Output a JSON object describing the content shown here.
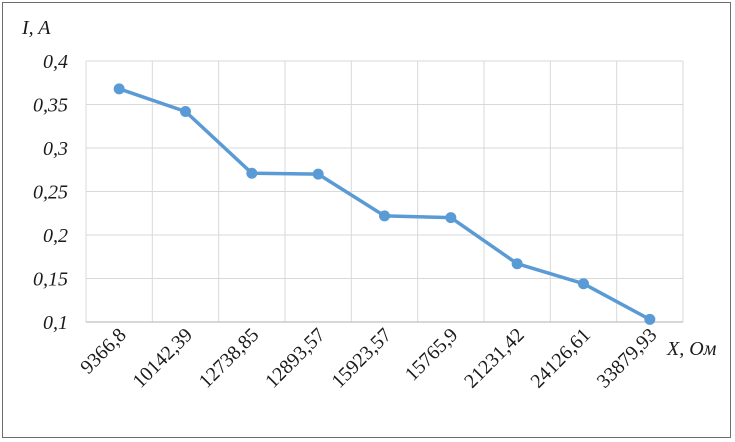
{
  "chart_data": {
    "type": "line",
    "title": "",
    "ylabel": "I, A",
    "xlabel": "X, Ом",
    "categories": [
      "9366,8",
      "10142,39",
      "12738,85",
      "12893,57",
      "15923,57",
      "15765,9",
      "21231,42",
      "24126,61",
      "33879,93"
    ],
    "values": [
      0.368,
      0.342,
      0.271,
      0.27,
      0.222,
      0.22,
      0.167,
      0.144,
      0.103
    ],
    "ylim": [
      0.1,
      0.4
    ],
    "yticks": [
      "0,1",
      "0,15",
      "0,2",
      "0,25",
      "0,3",
      "0,35",
      "0,4"
    ],
    "ytick_values": [
      0.1,
      0.15,
      0.2,
      0.25,
      0.3,
      0.35,
      0.4
    ],
    "grid": true,
    "legend": "none",
    "line_color": "#5b9bd5",
    "grid_color": "#d9d9d9"
  }
}
